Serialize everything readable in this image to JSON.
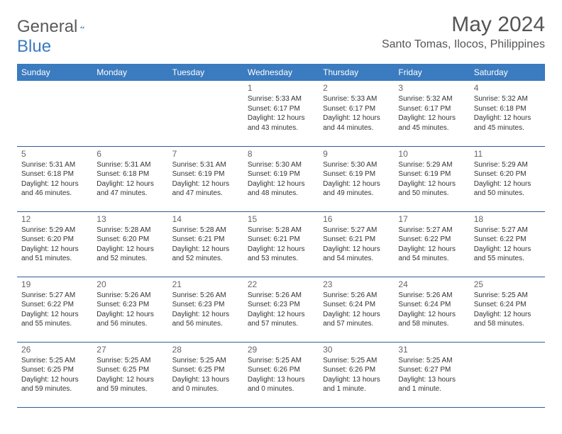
{
  "logo": {
    "general": "General",
    "blue": "Blue"
  },
  "title": "May 2024",
  "location": "Santo Tomas, Ilocos, Philippines",
  "dayNames": [
    "Sunday",
    "Monday",
    "Tuesday",
    "Wednesday",
    "Thursday",
    "Friday",
    "Saturday"
  ],
  "colors": {
    "header_bg": "#3b7bbf",
    "header_text": "#ffffff",
    "border": "#2f5d93",
    "title_text": "#555555",
    "body_text": "#333333"
  },
  "weeks": [
    [
      null,
      null,
      null,
      {
        "n": "1",
        "sr": "5:33 AM",
        "ss": "6:17 PM",
        "dl": "12 hours and 43 minutes."
      },
      {
        "n": "2",
        "sr": "5:33 AM",
        "ss": "6:17 PM",
        "dl": "12 hours and 44 minutes."
      },
      {
        "n": "3",
        "sr": "5:32 AM",
        "ss": "6:17 PM",
        "dl": "12 hours and 45 minutes."
      },
      {
        "n": "4",
        "sr": "5:32 AM",
        "ss": "6:18 PM",
        "dl": "12 hours and 45 minutes."
      }
    ],
    [
      {
        "n": "5",
        "sr": "5:31 AM",
        "ss": "6:18 PM",
        "dl": "12 hours and 46 minutes."
      },
      {
        "n": "6",
        "sr": "5:31 AM",
        "ss": "6:18 PM",
        "dl": "12 hours and 47 minutes."
      },
      {
        "n": "7",
        "sr": "5:31 AM",
        "ss": "6:19 PM",
        "dl": "12 hours and 47 minutes."
      },
      {
        "n": "8",
        "sr": "5:30 AM",
        "ss": "6:19 PM",
        "dl": "12 hours and 48 minutes."
      },
      {
        "n": "9",
        "sr": "5:30 AM",
        "ss": "6:19 PM",
        "dl": "12 hours and 49 minutes."
      },
      {
        "n": "10",
        "sr": "5:29 AM",
        "ss": "6:19 PM",
        "dl": "12 hours and 50 minutes."
      },
      {
        "n": "11",
        "sr": "5:29 AM",
        "ss": "6:20 PM",
        "dl": "12 hours and 50 minutes."
      }
    ],
    [
      {
        "n": "12",
        "sr": "5:29 AM",
        "ss": "6:20 PM",
        "dl": "12 hours and 51 minutes."
      },
      {
        "n": "13",
        "sr": "5:28 AM",
        "ss": "6:20 PM",
        "dl": "12 hours and 52 minutes."
      },
      {
        "n": "14",
        "sr": "5:28 AM",
        "ss": "6:21 PM",
        "dl": "12 hours and 52 minutes."
      },
      {
        "n": "15",
        "sr": "5:28 AM",
        "ss": "6:21 PM",
        "dl": "12 hours and 53 minutes."
      },
      {
        "n": "16",
        "sr": "5:27 AM",
        "ss": "6:21 PM",
        "dl": "12 hours and 54 minutes."
      },
      {
        "n": "17",
        "sr": "5:27 AM",
        "ss": "6:22 PM",
        "dl": "12 hours and 54 minutes."
      },
      {
        "n": "18",
        "sr": "5:27 AM",
        "ss": "6:22 PM",
        "dl": "12 hours and 55 minutes."
      }
    ],
    [
      {
        "n": "19",
        "sr": "5:27 AM",
        "ss": "6:22 PM",
        "dl": "12 hours and 55 minutes."
      },
      {
        "n": "20",
        "sr": "5:26 AM",
        "ss": "6:23 PM",
        "dl": "12 hours and 56 minutes."
      },
      {
        "n": "21",
        "sr": "5:26 AM",
        "ss": "6:23 PM",
        "dl": "12 hours and 56 minutes."
      },
      {
        "n": "22",
        "sr": "5:26 AM",
        "ss": "6:23 PM",
        "dl": "12 hours and 57 minutes."
      },
      {
        "n": "23",
        "sr": "5:26 AM",
        "ss": "6:24 PM",
        "dl": "12 hours and 57 minutes."
      },
      {
        "n": "24",
        "sr": "5:26 AM",
        "ss": "6:24 PM",
        "dl": "12 hours and 58 minutes."
      },
      {
        "n": "25",
        "sr": "5:25 AM",
        "ss": "6:24 PM",
        "dl": "12 hours and 58 minutes."
      }
    ],
    [
      {
        "n": "26",
        "sr": "5:25 AM",
        "ss": "6:25 PM",
        "dl": "12 hours and 59 minutes."
      },
      {
        "n": "27",
        "sr": "5:25 AM",
        "ss": "6:25 PM",
        "dl": "12 hours and 59 minutes."
      },
      {
        "n": "28",
        "sr": "5:25 AM",
        "ss": "6:25 PM",
        "dl": "13 hours and 0 minutes."
      },
      {
        "n": "29",
        "sr": "5:25 AM",
        "ss": "6:26 PM",
        "dl": "13 hours and 0 minutes."
      },
      {
        "n": "30",
        "sr": "5:25 AM",
        "ss": "6:26 PM",
        "dl": "13 hours and 1 minute."
      },
      {
        "n": "31",
        "sr": "5:25 AM",
        "ss": "6:27 PM",
        "dl": "13 hours and 1 minute."
      },
      null
    ]
  ],
  "labels": {
    "sunrise": "Sunrise:",
    "sunset": "Sunset:",
    "daylight": "Daylight:"
  }
}
